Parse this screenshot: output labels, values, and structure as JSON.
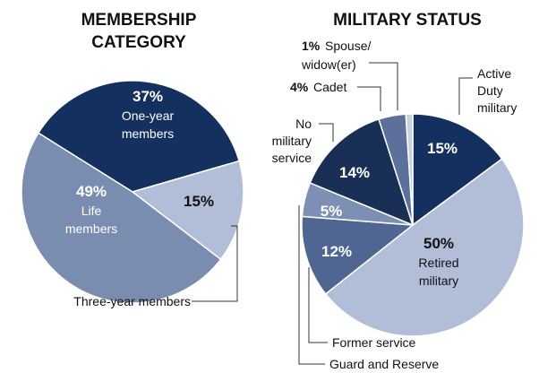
{
  "chart_data": [
    {
      "type": "pie",
      "title": "MEMBERSHIP CATEGORY",
      "title_lines": [
        "MEMBERSHIP",
        "CATEGORY"
      ],
      "slices": [
        {
          "pct": "37%",
          "value": 37,
          "label_lines": [
            "One-year",
            "members"
          ],
          "color": "#14305e"
        },
        {
          "pct": "15%",
          "value": 15,
          "label": "Three-year members",
          "color": "#b2bdd8"
        },
        {
          "pct": "49%",
          "value": 49,
          "label_lines": [
            "Life",
            "members"
          ],
          "color": "#7a8cb0"
        }
      ]
    },
    {
      "type": "pie",
      "title": "MILITARY STATUS",
      "slices": [
        {
          "pct": "15%",
          "value": 15,
          "label_lines": [
            "Active",
            "Duty",
            "military"
          ],
          "color": "#14305e"
        },
        {
          "pct": "50%",
          "value": 50,
          "label_lines": [
            "Retired",
            "military"
          ],
          "color": "#b2bdd8"
        },
        {
          "pct": "12%",
          "value": 12,
          "label": "Guard and Reserve",
          "color": "#4f6592"
        },
        {
          "pct": "5%",
          "value": 5,
          "label": "Former service",
          "color": "#7d8fb2"
        },
        {
          "pct": "14%",
          "value": 14,
          "label_lines": [
            "No",
            "military",
            "service"
          ],
          "color": "#1a2f55"
        },
        {
          "pct": "4%",
          "value": 4,
          "label": "Cadet",
          "color": "#5d709c"
        },
        {
          "pct": "1%",
          "value": 1,
          "label_lines": [
            "Spouse/",
            "widow(er)"
          ],
          "color": "#c9cfde"
        }
      ]
    }
  ]
}
